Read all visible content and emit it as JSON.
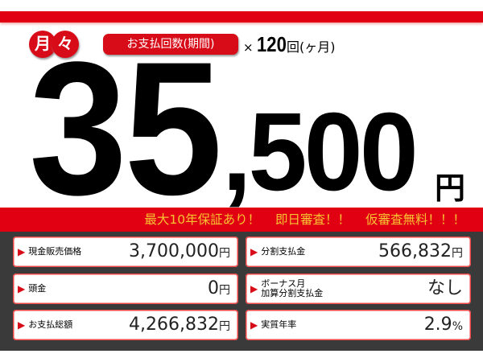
{
  "header": {
    "monthly_label": [
      "月",
      "々"
    ],
    "payment_count_label": "お支払回数(期間)",
    "times_symbol": "×",
    "count": "120",
    "count_unit": "回(ヶ月)"
  },
  "price": {
    "main": "35",
    "rest": ",500",
    "unit": "円"
  },
  "banner": "最大10年保証あり！ 即日審査！！ 仮審査無料！！！",
  "details": [
    {
      "label": "現金販売価格",
      "value": "3,700,000",
      "unit": "円"
    },
    {
      "label": "分割支払金",
      "value": "566,832",
      "unit": "円"
    },
    {
      "label": "頭金",
      "value": "0",
      "unit": "円"
    },
    {
      "label": "ボーナス月\n加算分割支払金",
      "value": "なし",
      "unit": ""
    },
    {
      "label": "お支払総額",
      "value": "4,266,832",
      "unit": "円"
    },
    {
      "label": "実質年率",
      "value": "2.9",
      "unit": "%"
    }
  ],
  "colors": {
    "accent": "#e00012",
    "banner_text": "#f7c232",
    "panel": "#3a3a3a"
  }
}
